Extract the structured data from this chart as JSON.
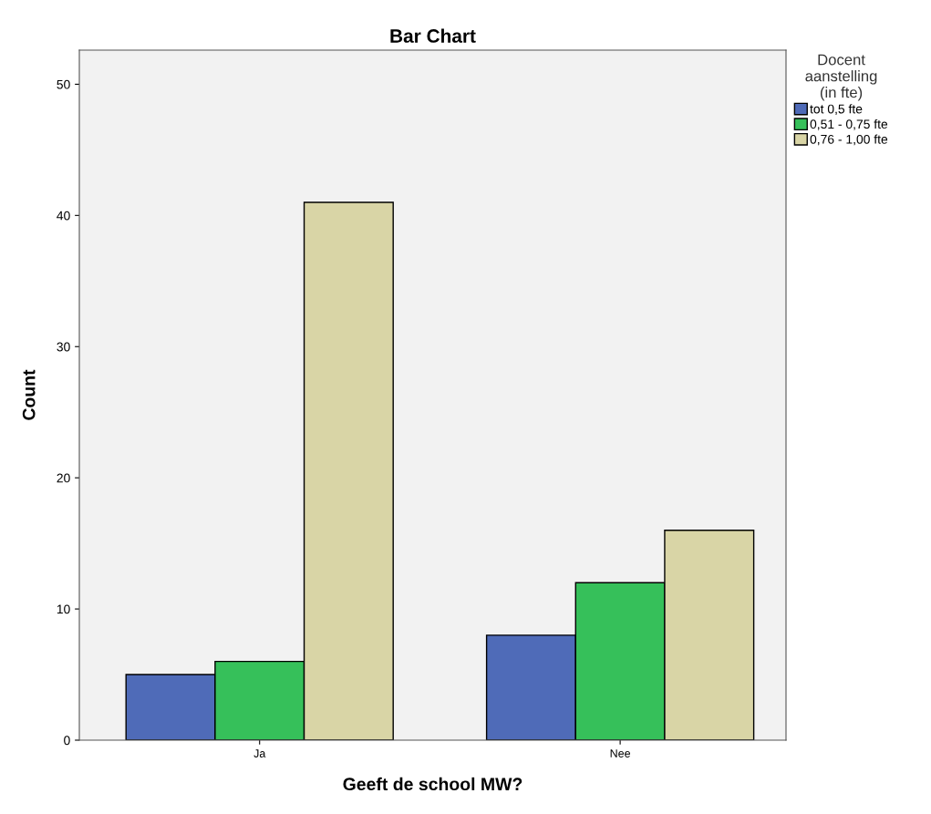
{
  "chart_data": {
    "type": "bar",
    "title": "Bar Chart",
    "xlabel": "Geeft de school MW?",
    "ylabel": "Count",
    "categories": [
      "Ja",
      "Nee"
    ],
    "series": [
      {
        "name": "tot 0,5 fte",
        "color": "#4f6bb8",
        "values": [
          5,
          8
        ]
      },
      {
        "name": "0,51 - 0,75 fte",
        "color": "#36c05a",
        "values": [
          6,
          12
        ]
      },
      {
        "name": "0,76 - 1,00 fte",
        "color": "#d9d5a6",
        "values": [
          41,
          16
        ]
      }
    ],
    "legend_title": "Docent\naanstelling\n(in fte)",
    "legend": "right",
    "ylim": [
      0,
      52.6
    ],
    "yticks": [
      0,
      10,
      20,
      30,
      40,
      50
    ],
    "grid": false
  }
}
